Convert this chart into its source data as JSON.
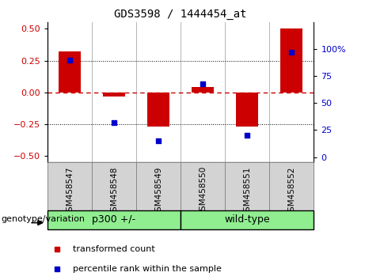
{
  "title": "GDS3598 / 1444454_at",
  "samples": [
    "GSM458547",
    "GSM458548",
    "GSM458549",
    "GSM458550",
    "GSM458551",
    "GSM458552"
  ],
  "bar_values": [
    0.32,
    -0.03,
    -0.27,
    0.04,
    -0.27,
    0.5
  ],
  "scatter_values": [
    90,
    32,
    15,
    68,
    20,
    97
  ],
  "group1_label": "p300 +/-",
  "group2_label": "wild-type",
  "group_color": "#90EE90",
  "bar_color": "#cc0000",
  "scatter_color": "#0000cc",
  "ylim_left": [
    -0.55,
    0.55
  ],
  "yticks_left": [
    -0.5,
    -0.25,
    0.0,
    0.25,
    0.5
  ],
  "ylim_right": [
    -5,
    125
  ],
  "yticks_right": [
    0,
    25,
    50,
    75,
    100
  ],
  "zero_line_color": "#cc0000",
  "dotted_line_color": "black",
  "legend_bar_label": "transformed count",
  "legend_scatter_label": "percentile rank within the sample",
  "genotype_label": "genotype/variation",
  "sample_bg_color": "#d3d3d3",
  "bar_width": 0.5,
  "scatter_size": 25,
  "tick_fontsize": 8,
  "title_fontsize": 10,
  "sample_fontsize": 7.5,
  "group_fontsize": 9,
  "legend_fontsize": 8,
  "geno_fontsize": 8
}
